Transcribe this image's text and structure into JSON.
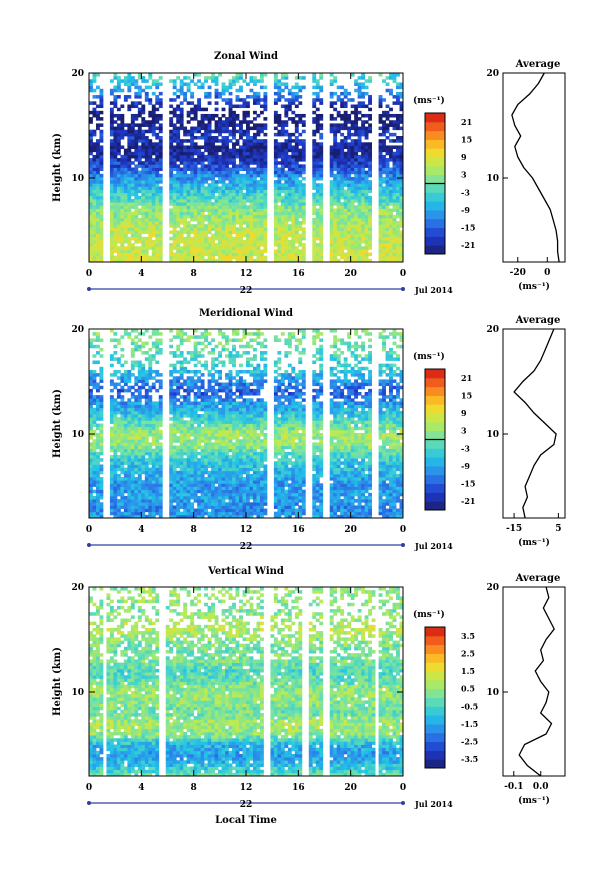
{
  "figure": {
    "xlabel": "Local Time",
    "date_label": "Jul 2014",
    "day_label": "22",
    "avg_title": "Average",
    "unit": "(ms⁻¹)"
  },
  "chart_data": [
    {
      "type": "heatmap",
      "title": "Zonal Wind",
      "ylabel": "Height (km)",
      "x_ticks": [
        "0",
        "4",
        "8",
        "12",
        "16",
        "20",
        "0"
      ],
      "xlim": [
        0,
        24
      ],
      "y_ticks": [
        "20",
        "10"
      ],
      "y_tick_values": [
        20,
        10
      ],
      "ylim": [
        2,
        20
      ],
      "colorbar_unit": "(ms⁻¹)",
      "colorbar_ticks": [
        "21",
        "15",
        "9",
        "3",
        "-3",
        "-9",
        "-15",
        "-21"
      ],
      "colorbar_values": [
        21,
        15,
        9,
        3,
        -3,
        -9,
        -15,
        -21
      ],
      "colorbar_range": [
        -24,
        24
      ],
      "gap_hours": [
        [
          1.0,
          1.5
        ],
        [
          5.5,
          6.0
        ],
        [
          13.5,
          14.0
        ],
        [
          16.5,
          17.0
        ],
        [
          17.8,
          18.3
        ],
        [
          21.5,
          22.2
        ]
      ],
      "profile_heights": [
        2,
        3,
        4,
        5,
        6,
        7,
        8,
        9,
        10,
        11,
        12,
        13,
        14,
        15,
        16,
        17,
        18,
        19,
        20
      ],
      "profile_values": [
        8,
        7,
        7,
        6,
        4,
        2,
        -2,
        -6,
        -10,
        -16,
        -20,
        -22,
        -18,
        -22,
        -24,
        -20,
        -12,
        -6,
        -2
      ],
      "profile_x_ticks": [
        "-20",
        "0"
      ],
      "profile_x_tick_values": [
        -20,
        0
      ],
      "profile_xlim": [
        -30,
        12
      ],
      "profile_y_ticks": [
        "20",
        "10"
      ],
      "profile_y_tick_values": [
        20,
        10
      ]
    },
    {
      "type": "heatmap",
      "title": "Meridional Wind",
      "ylabel": "Height (km)",
      "x_ticks": [
        "0",
        "4",
        "8",
        "12",
        "16",
        "20",
        "0"
      ],
      "xlim": [
        0,
        24
      ],
      "y_ticks": [
        "20",
        "10"
      ],
      "y_tick_values": [
        20,
        10
      ],
      "ylim": [
        2,
        20
      ],
      "colorbar_unit": "(ms⁻¹)",
      "colorbar_ticks": [
        "21",
        "15",
        "9",
        "3",
        "-3",
        "-9",
        "-15",
        "-21"
      ],
      "colorbar_values": [
        21,
        15,
        9,
        3,
        -3,
        -9,
        -15,
        -21
      ],
      "colorbar_range": [
        -24,
        24
      ],
      "gap_hours": [
        [
          1.0,
          1.5
        ],
        [
          5.5,
          6.0
        ],
        [
          13.5,
          14.0
        ],
        [
          16.5,
          17.0
        ],
        [
          17.8,
          18.3
        ],
        [
          21.5,
          22.2
        ]
      ],
      "profile_heights": [
        2,
        3,
        4,
        5,
        6,
        7,
        8,
        9,
        10,
        11,
        12,
        13,
        14,
        15,
        16,
        17,
        18,
        19,
        20
      ],
      "profile_values": [
        -10,
        -11,
        -9,
        -10,
        -8,
        -6,
        -3,
        3,
        4,
        -1,
        -6,
        -10,
        -15,
        -11,
        -6,
        -3,
        -1,
        1,
        3
      ],
      "profile_x_ticks": [
        "-15",
        "5"
      ],
      "profile_x_tick_values": [
        -15,
        5
      ],
      "profile_xlim": [
        -20,
        8
      ],
      "profile_y_ticks": [
        "20",
        "10"
      ],
      "profile_y_tick_values": [
        20,
        10
      ]
    },
    {
      "type": "heatmap",
      "title": "Vertical Wind",
      "ylabel": "Height (km)",
      "x_ticks": [
        "0",
        "4",
        "8",
        "12",
        "16",
        "20",
        "0"
      ],
      "xlim": [
        0,
        24
      ],
      "y_ticks": [
        "20",
        "10"
      ],
      "y_tick_values": [
        20,
        10
      ],
      "ylim": [
        2,
        20
      ],
      "colorbar_unit": "(ms⁻¹)",
      "colorbar_ticks": [
        "3.5",
        "2.5",
        "1.5",
        "0.5",
        "-0.5",
        "-1.5",
        "-2.5",
        "-3.5"
      ],
      "colorbar_values": [
        3.5,
        2.5,
        1.5,
        0.5,
        -0.5,
        -1.5,
        -2.5,
        -3.5
      ],
      "colorbar_range": [
        -4,
        4
      ],
      "gap_hours": [
        [
          1.0,
          1.3
        ],
        [
          5.3,
          5.8
        ],
        [
          13.3,
          13.8
        ],
        [
          16.4,
          16.8
        ],
        [
          17.8,
          18.3
        ],
        [
          21.8,
          22.2
        ]
      ],
      "profile_heights": [
        2,
        3,
        4,
        5,
        6,
        7,
        8,
        9,
        10,
        11,
        12,
        13,
        14,
        15,
        16,
        17,
        18,
        19,
        20
      ],
      "profile_values": [
        0.0,
        -0.05,
        -0.08,
        -0.06,
        0.02,
        0.04,
        0.0,
        0.02,
        0.03,
        0.0,
        -0.02,
        0.01,
        0.0,
        0.02,
        0.05,
        0.03,
        0.01,
        0.03,
        0.02
      ],
      "profile_x_ticks": [
        "-0.1",
        "0.0"
      ],
      "profile_x_tick_values": [
        -0.1,
        0.0
      ],
      "profile_xlim": [
        -0.14,
        0.09
      ],
      "profile_y_ticks": [
        "20",
        "10"
      ],
      "profile_y_tick_values": [
        20,
        10
      ]
    }
  ]
}
